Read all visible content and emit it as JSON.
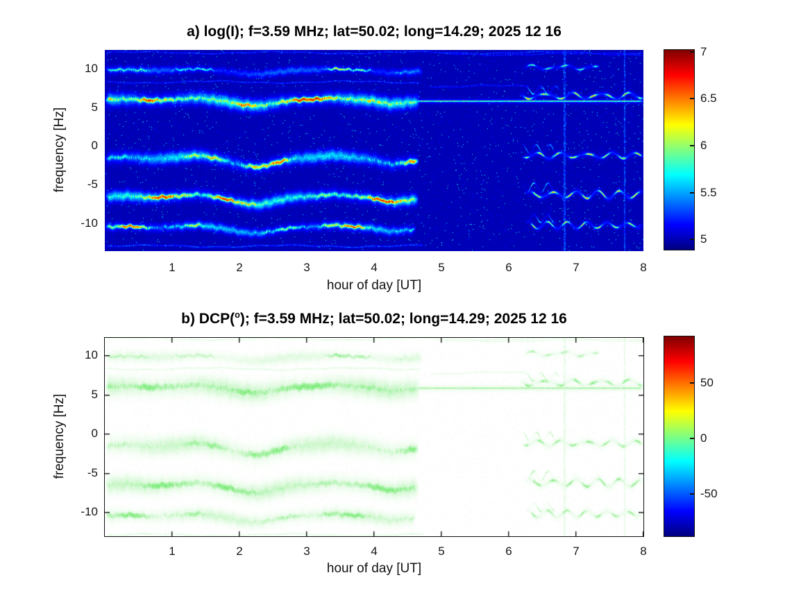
{
  "figure": {
    "type": "dual spectrogram figure",
    "background": "#ffffff"
  },
  "chart_data": [
    {
      "type": "heatmap",
      "panel": "a",
      "title_pre": "a) log(I); f=3.59 MHz;  lat=50.02; long=14.29; 2025 12 16",
      "title_sup": "",
      "title_post": "",
      "xlabel": "hour of day [UT]",
      "ylabel": "frequency [Hz]",
      "xlim": [
        0,
        8
      ],
      "ylim": [
        -13.5,
        12.5
      ],
      "xticks": [
        1,
        2,
        3,
        4,
        5,
        6,
        7,
        8
      ],
      "yticks": [
        10,
        5,
        0,
        -5,
        -10
      ],
      "colormap": "jet",
      "background_value": 5.0,
      "background_color": "#0000ad",
      "colorbar": {
        "range": [
          4.89,
          7.02
        ],
        "ticks": [
          7,
          6.5,
          6,
          5.5,
          5
        ]
      },
      "width_scale": 1.0,
      "bands_end_hour": 4.65,
      "activity_resumes_hour": 6.2,
      "wiggle": [
        [
          0,
          0.05
        ],
        [
          0.35,
          0.15
        ],
        [
          0.7,
          -0.05
        ],
        [
          1.05,
          0.1
        ],
        [
          1.4,
          0.3
        ],
        [
          1.75,
          -0.1
        ],
        [
          2.05,
          -0.6
        ],
        [
          2.3,
          -0.75
        ],
        [
          2.55,
          -0.35
        ],
        [
          2.8,
          0.0
        ],
        [
          3.1,
          0.1
        ],
        [
          3.4,
          0.3
        ],
        [
          3.7,
          0.1
        ],
        [
          3.95,
          -0.05
        ],
        [
          4.25,
          -0.5
        ],
        [
          4.45,
          -0.35
        ],
        [
          4.7,
          -0.15
        ]
      ],
      "bands": [
        {
          "label": "narrow band near +10 Hz",
          "f0": 9.85,
          "mult": 0.7,
          "t0": 0,
          "t1": 4.72,
          "core_amp": 1.65,
          "core_w": 0.15,
          "halo_amp": 0.5,
          "halo_w": 0.42,
          "bias": 0.06
        },
        {
          "label": "strong band near +6 Hz",
          "f0": 6.0,
          "mult": 1.0,
          "t0": 0,
          "t1": 4.68,
          "core_amp": 2.02,
          "core_w": 0.3,
          "halo_amp": 0.95,
          "halo_w": 0.75,
          "bias": 0.5
        },
        {
          "label": "band near -1.5 Hz",
          "f0": -1.55,
          "mult": 1.5,
          "t0": 0,
          "t1": 4.66,
          "core_amp": 1.85,
          "core_w": 0.3,
          "halo_amp": 0.8,
          "halo_w": 0.7,
          "bias": 0.3
        },
        {
          "label": "band near -6.5 Hz",
          "f0": -6.55,
          "mult": 1.3,
          "t0": 0,
          "t1": 4.66,
          "core_amp": 1.95,
          "core_w": 0.28,
          "halo_amp": 0.85,
          "halo_w": 0.66,
          "bias": 0.42
        },
        {
          "label": "band near -10.5 Hz",
          "f0": -10.45,
          "mult": 1.05,
          "t0": 0,
          "t1": 4.62,
          "core_amp": 1.8,
          "core_w": 0.22,
          "halo_amp": 0.7,
          "halo_w": 0.5,
          "bias": 0.28
        }
      ],
      "late": [
        {
          "f0": 10.25,
          "t0": 6.2,
          "t1": 7.35,
          "amp": 0.22,
          "per": 0.5,
          "core": 1.15,
          "w": 0.11
        },
        {
          "f0": 6.55,
          "t0": 6.15,
          "t1": 8.0,
          "amp": 0.33,
          "per": 0.42,
          "core": 1.65,
          "w": 0.13
        },
        {
          "f0": -1.15,
          "t0": 6.2,
          "t1": 8.0,
          "amp": 0.3,
          "per": 0.37,
          "core": 1.6,
          "w": 0.12
        },
        {
          "f0": -6.2,
          "t0": 6.25,
          "t1": 8.0,
          "amp": 0.42,
          "per": 0.33,
          "core": 1.7,
          "w": 0.13
        },
        {
          "f0": -10.15,
          "t0": 6.3,
          "t1": 8.0,
          "amp": 0.35,
          "per": 0.3,
          "core": 1.5,
          "w": 0.12
        }
      ],
      "bursts": [
        {
          "f0": 7.3,
          "t0": 6.2,
          "t1": 6.75,
          "amp": 0.5,
          "per": 0.22,
          "core": 1.1,
          "w": 0.1
        },
        {
          "f0": -0.3,
          "t0": 6.2,
          "t1": 6.7,
          "amp": 0.55,
          "per": 0.2,
          "core": 1.0,
          "w": 0.1
        },
        {
          "f0": -5.3,
          "t0": 6.2,
          "t1": 6.72,
          "amp": 0.6,
          "per": 0.21,
          "core": 1.1,
          "w": 0.1
        },
        {
          "f0": -9.3,
          "t0": 6.25,
          "t1": 6.7,
          "amp": 0.5,
          "per": 0.2,
          "core": 0.95,
          "w": 0.1
        }
      ],
      "line": {
        "f": 5.88,
        "t0": 4.6,
        "t1": 8.0,
        "core": 1.3,
        "w": 0.09,
        "halo": 0.45,
        "hw": 0.3
      },
      "wisps": [
        {
          "f": 12.15,
          "t0": 0,
          "t1": 8,
          "core": 0.5,
          "w": 0.08
        },
        {
          "f": 8.35,
          "t0": 0,
          "t1": 4.7,
          "core": 0.5,
          "w": 0.08
        },
        {
          "f": -12.85,
          "t0": 0,
          "t1": 4.75,
          "core": 0.55,
          "w": 0.09
        },
        {
          "f": 7.8,
          "t0": 4.8,
          "t1": 6.3,
          "core": 0.4,
          "w": 0.08
        },
        {
          "f": 11.95,
          "t0": 5.0,
          "t1": 8.0,
          "core": 0.38,
          "w": 0.08
        }
      ],
      "vlines": [
        6.83,
        7.72
      ]
    },
    {
      "type": "heatmap",
      "panel": "b",
      "title_pre": "b) DCP(",
      "title_sup": "o",
      "title_post": "); f=3.59 MHz;  lat=50.02; long=14.29; 2025 12 16",
      "xlabel": "hour of day [UT]",
      "ylabel": "frequency [Hz]",
      "xlim": [
        0,
        8
      ],
      "ylim": [
        -13.0,
        12.3
      ],
      "xticks": [
        1,
        2,
        3,
        4,
        5,
        6,
        7,
        8
      ],
      "yticks": [
        10,
        5,
        0,
        -5,
        -10
      ],
      "colormap": "jet",
      "background_value": 5.0,
      "background_color": "#ffffff",
      "trace_color": "#80ff80",
      "trace_value_deg": 0,
      "colorbar": {
        "range": [
          -88,
          92
        ],
        "ticks": [
          50,
          0,
          -50
        ]
      },
      "width_scale": 1.45,
      "bands_end_hour": 4.65,
      "activity_resumes_hour": 6.2,
      "wiggle": [
        [
          0,
          0.05
        ],
        [
          0.35,
          0.15
        ],
        [
          0.7,
          -0.05
        ],
        [
          1.05,
          0.1
        ],
        [
          1.4,
          0.3
        ],
        [
          1.75,
          -0.1
        ],
        [
          2.05,
          -0.6
        ],
        [
          2.3,
          -0.75
        ],
        [
          2.55,
          -0.35
        ],
        [
          2.8,
          0.0
        ],
        [
          3.1,
          0.1
        ],
        [
          3.4,
          0.3
        ],
        [
          3.7,
          0.1
        ],
        [
          3.95,
          -0.05
        ],
        [
          4.25,
          -0.5
        ],
        [
          4.45,
          -0.35
        ],
        [
          4.7,
          -0.15
        ]
      ],
      "bands": [
        {
          "label": "narrow band near +10 Hz",
          "f0": 9.85,
          "mult": 0.7,
          "t0": 0,
          "t1": 4.72,
          "core_amp": 1.65,
          "core_w": 0.15,
          "halo_amp": 0.5,
          "halo_w": 0.42,
          "bias": 0.06
        },
        {
          "label": "strong band near +6 Hz",
          "f0": 6.0,
          "mult": 1.0,
          "t0": 0,
          "t1": 4.68,
          "core_amp": 2.02,
          "core_w": 0.3,
          "halo_amp": 0.95,
          "halo_w": 0.75,
          "bias": 0.5
        },
        {
          "label": "band near -1.5 Hz",
          "f0": -1.55,
          "mult": 1.5,
          "t0": 0,
          "t1": 4.66,
          "core_amp": 1.85,
          "core_w": 0.3,
          "halo_amp": 0.8,
          "halo_w": 0.7,
          "bias": 0.3
        },
        {
          "label": "band near -6.5 Hz",
          "f0": -6.55,
          "mult": 1.3,
          "t0": 0,
          "t1": 4.66,
          "core_amp": 1.95,
          "core_w": 0.28,
          "halo_amp": 0.85,
          "halo_w": 0.66,
          "bias": 0.42
        },
        {
          "label": "band near -10.5 Hz",
          "f0": -10.45,
          "mult": 1.05,
          "t0": 0,
          "t1": 4.62,
          "core_amp": 1.8,
          "core_w": 0.22,
          "halo_amp": 0.7,
          "halo_w": 0.5,
          "bias": 0.28
        }
      ],
      "late": [
        {
          "f0": 10.25,
          "t0": 6.2,
          "t1": 7.35,
          "amp": 0.22,
          "per": 0.5,
          "core": 1.15,
          "w": 0.11
        },
        {
          "f0": 6.55,
          "t0": 6.15,
          "t1": 8.0,
          "amp": 0.33,
          "per": 0.42,
          "core": 1.65,
          "w": 0.13
        },
        {
          "f0": -1.15,
          "t0": 6.2,
          "t1": 8.0,
          "amp": 0.3,
          "per": 0.37,
          "core": 1.6,
          "w": 0.12
        },
        {
          "f0": -6.2,
          "t0": 6.25,
          "t1": 8.0,
          "amp": 0.42,
          "per": 0.33,
          "core": 1.7,
          "w": 0.13
        },
        {
          "f0": -10.15,
          "t0": 6.3,
          "t1": 8.0,
          "amp": 0.35,
          "per": 0.3,
          "core": 1.5,
          "w": 0.12
        }
      ],
      "bursts": [
        {
          "f0": 7.3,
          "t0": 6.2,
          "t1": 6.75,
          "amp": 0.5,
          "per": 0.22,
          "core": 1.1,
          "w": 0.1
        },
        {
          "f0": -0.3,
          "t0": 6.2,
          "t1": 6.7,
          "amp": 0.55,
          "per": 0.2,
          "core": 1.0,
          "w": 0.1
        },
        {
          "f0": -5.3,
          "t0": 6.2,
          "t1": 6.72,
          "amp": 0.6,
          "per": 0.21,
          "core": 1.1,
          "w": 0.1
        },
        {
          "f0": -9.3,
          "t0": 6.25,
          "t1": 6.7,
          "amp": 0.5,
          "per": 0.2,
          "core": 0.95,
          "w": 0.1
        }
      ],
      "line": {
        "f": 5.88,
        "t0": 4.6,
        "t1": 8.0,
        "core": 1.3,
        "w": 0.09,
        "halo": 0.45,
        "hw": 0.3
      },
      "wisps": [
        {
          "f": 12.15,
          "t0": 0,
          "t1": 8,
          "core": 0.5,
          "w": 0.08
        },
        {
          "f": 8.35,
          "t0": 0,
          "t1": 4.7,
          "core": 0.5,
          "w": 0.08
        },
        {
          "f": -12.85,
          "t0": 0,
          "t1": 4.75,
          "core": 0.55,
          "w": 0.09
        },
        {
          "f": 7.8,
          "t0": 4.8,
          "t1": 6.3,
          "core": 0.4,
          "w": 0.08
        },
        {
          "f": 11.95,
          "t0": 5.0,
          "t1": 8.0,
          "core": 0.38,
          "w": 0.08
        }
      ],
      "vlines": [
        6.83,
        7.72
      ]
    }
  ]
}
